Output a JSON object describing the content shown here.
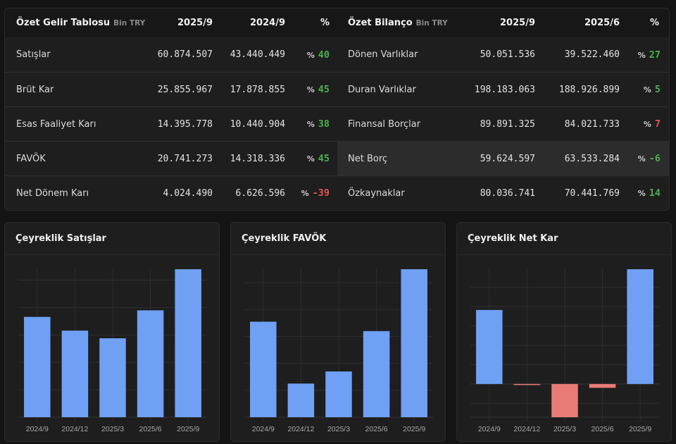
{
  "income_table": {
    "title": "Özet Gelir Tablosu",
    "unit": "Bin TRY",
    "columns": [
      "2025/9",
      "2024/9",
      "%"
    ],
    "rows": [
      {
        "label": "Satışlar",
        "v1": "60.874.507",
        "v2": "43.440.449",
        "pct_sign": "%",
        "pct": "40",
        "trend": "pos"
      },
      {
        "label": "Brüt Kar",
        "v1": "25.855.967",
        "v2": "17.878.855",
        "pct_sign": "%",
        "pct": "45",
        "trend": "pos"
      },
      {
        "label": "Esas Faaliyet Karı",
        "v1": "14.395.778",
        "v2": "10.440.904",
        "pct_sign": "%",
        "pct": "38",
        "trend": "pos"
      },
      {
        "label": "FAVÖK",
        "v1": "20.741.273",
        "v2": "14.318.336",
        "pct_sign": "%",
        "pct": "45",
        "trend": "pos"
      },
      {
        "label": "Net Dönem Karı",
        "v1": "4.024.490",
        "v2": "6.626.596",
        "pct_sign": "%",
        "pct": "-39",
        "trend": "neg"
      }
    ]
  },
  "balance_table": {
    "title": "Özet Bilanço",
    "unit": "Bin TRY",
    "columns": [
      "2025/9",
      "2025/6",
      "%"
    ],
    "rows": [
      {
        "label": "Dönen Varlıklar",
        "v1": "50.051.536",
        "v2": "39.522.460",
        "pct_sign": "%",
        "pct": "27",
        "trend": "pos"
      },
      {
        "label": "Duran Varlıklar",
        "v1": "198.183.063",
        "v2": "188.926.899",
        "pct_sign": "%",
        "pct": "5",
        "trend": "pos"
      },
      {
        "label": "Finansal Borçlar",
        "v1": "89.891.325",
        "v2": "84.021.733",
        "pct_sign": "%",
        "pct": "7",
        "trend": "neg"
      },
      {
        "label": "Net Borç",
        "v1": "59.624.597",
        "v2": "63.533.284",
        "pct_sign": "%",
        "pct": "-6",
        "trend": "pos",
        "highlighted": true
      },
      {
        "label": "Özkaynaklar",
        "v1": "80.036.741",
        "v2": "70.441.769",
        "pct_sign": "%",
        "pct": "14",
        "trend": "pos"
      }
    ]
  },
  "colors": {
    "positive": "#4caf50",
    "negative": "#e55353",
    "bar_positive": "#6fa0f4",
    "bar_negative": "#e97b76"
  },
  "chart_data": [
    {
      "type": "bar",
      "title": "Çeyreklik Satışlar",
      "categories": [
        "2024/9",
        "2024/12",
        "2025/3",
        "2025/6",
        "2025/9"
      ],
      "values": [
        18300000,
        15800000,
        14400000,
        19500000,
        27000000
      ],
      "xlabel": "",
      "ylabel": "",
      "ylim": [
        0,
        27000000
      ],
      "ystep": 5000000,
      "grid": true
    },
    {
      "type": "bar",
      "title": "Çeyreklik FAVÖK",
      "categories": [
        "2024/9",
        "2024/12",
        "2025/3",
        "2025/6",
        "2025/9"
      ],
      "values": [
        7100000,
        2500000,
        3400000,
        6400000,
        11000000
      ],
      "xlabel": "",
      "ylabel": "",
      "ylim": [
        0,
        11000000
      ],
      "ystep": 2000000,
      "grid": true
    },
    {
      "type": "bar",
      "title": "Çeyreklik Net Kar",
      "categories": [
        "2024/9",
        "2024/12",
        "2025/3",
        "2025/6",
        "2025/9"
      ],
      "values": [
        3830000,
        -40000,
        -1720000,
        -200000,
        5940000
      ],
      "xlabel": "",
      "ylabel": "",
      "ylim": [
        -1720000,
        5940000
      ],
      "ystep": 1000000,
      "grid": true
    }
  ]
}
